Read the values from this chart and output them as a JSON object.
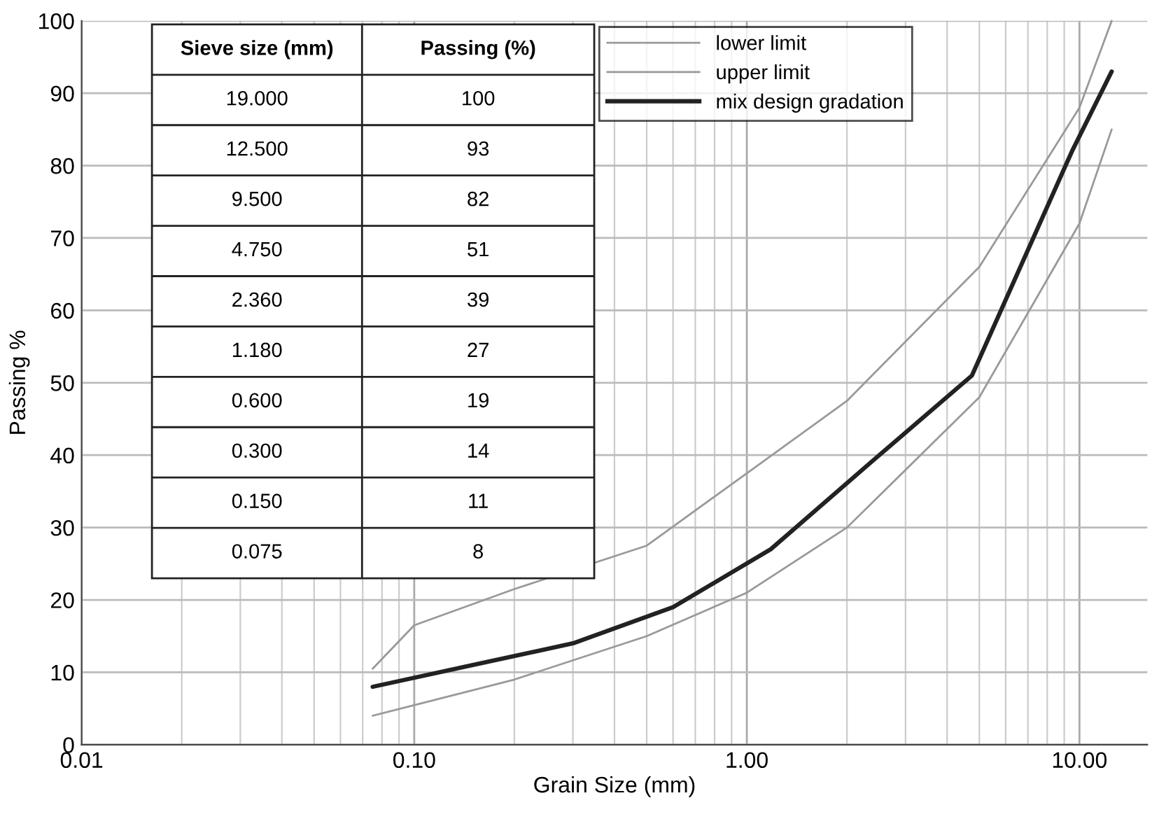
{
  "chart_data": {
    "type": "line",
    "xlabel": "Grain Size (mm)",
    "ylabel": "Passing %",
    "log": "x",
    "xlim": [
      0.01,
      16
    ],
    "xticks": [
      {
        "value": 0.01,
        "label": "0.01"
      },
      {
        "value": 0.1,
        "label": "0.10"
      },
      {
        "value": 1,
        "label": "1.00"
      },
      {
        "value": 10,
        "label": "10.00"
      }
    ],
    "ylim": [
      0,
      100
    ],
    "yticks": [
      0,
      10,
      20,
      30,
      40,
      50,
      60,
      70,
      80,
      90,
      100
    ],
    "grid": true,
    "legend": "top",
    "series": [
      {
        "name": "lower limit",
        "color": "#999999",
        "x": [
          0.075,
          0.2,
          0.5,
          1,
          2,
          5,
          10,
          12.5
        ],
        "values": [
          4,
          9,
          15,
          21,
          30,
          48,
          72,
          85
        ]
      },
      {
        "name": "upper limit",
        "color": "#999999",
        "x": [
          0.075,
          0.1,
          0.2,
          0.5,
          1,
          2,
          5,
          10,
          12.5
        ],
        "values": [
          10.5,
          16.5,
          21.5,
          27.5,
          37.5,
          47.5,
          66,
          88,
          100
        ]
      },
      {
        "name": "mix design gradation",
        "color": "#222222",
        "x": [
          0.075,
          0.15,
          0.3,
          0.6,
          1.18,
          2.36,
          4.75,
          9.5,
          12.5
        ],
        "values": [
          8,
          11,
          14,
          19,
          27,
          39,
          51,
          82,
          93
        ]
      }
    ],
    "annotations": [
      "Sieve size (mm)",
      "Passing (%)",
      "19.000",
      "100",
      "12.500",
      "93",
      "9.500",
      "82",
      "4.750",
      "51",
      "2.360",
      "39",
      "1.180",
      "27",
      "0.600",
      "19",
      "0.300",
      "14",
      "0.150",
      "11",
      "0.075",
      "8"
    ]
  }
}
